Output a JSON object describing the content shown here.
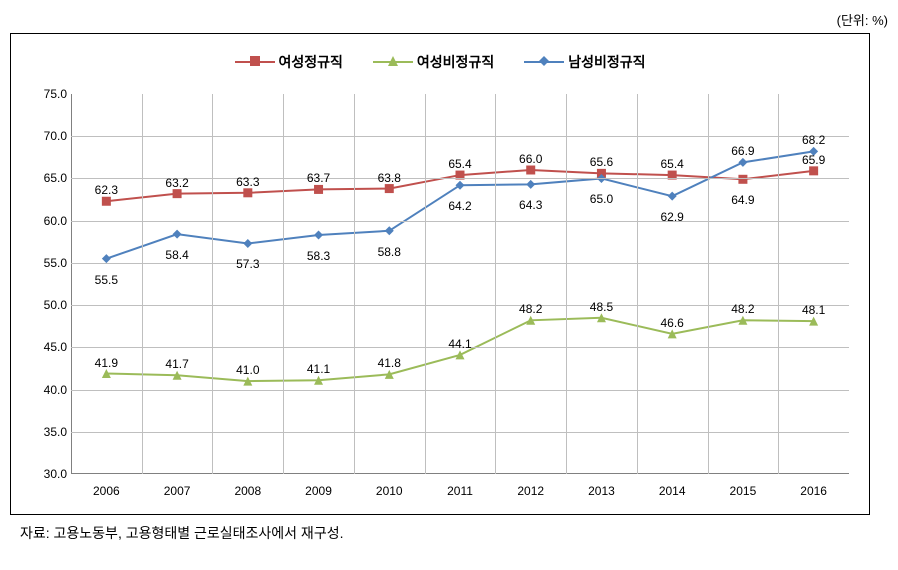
{
  "unit_label": "(단위: %)",
  "chart": {
    "type": "line",
    "years": [
      "2006",
      "2007",
      "2008",
      "2009",
      "2010",
      "2011",
      "2012",
      "2013",
      "2014",
      "2015",
      "2016"
    ],
    "ylim": [
      30.0,
      75.0
    ],
    "ytick_step": 5.0,
    "yticks": [
      "30.0",
      "35.0",
      "40.0",
      "45.0",
      "50.0",
      "55.0",
      "60.0",
      "65.0",
      "70.0",
      "75.0"
    ],
    "background_color": "#ffffff",
    "grid_color": "#bfbfbf",
    "axis_color": "#808080",
    "label_fontsize": 12,
    "legend_fontsize": 14,
    "line_width": 2,
    "marker_size": 9,
    "series": [
      {
        "key": "female_regular",
        "label": "여성정규직",
        "color": "#c0504d",
        "marker": "square",
        "values": [
          62.3,
          63.2,
          63.3,
          63.7,
          63.8,
          65.4,
          66.0,
          65.6,
          65.4,
          64.9,
          65.9
        ],
        "label_position": "above"
      },
      {
        "key": "female_irregular",
        "label": "여성비정규직",
        "color": "#9bbb59",
        "marker": "triangle",
        "values": [
          41.9,
          41.7,
          41.0,
          41.1,
          41.8,
          44.1,
          48.2,
          48.5,
          46.6,
          48.2,
          48.1
        ],
        "label_position": "above"
      },
      {
        "key": "male_irregular",
        "label": "남성비정규직",
        "color": "#4f81bd",
        "marker": "diamond",
        "values": [
          55.5,
          58.4,
          57.3,
          58.3,
          58.8,
          64.2,
          64.3,
          65.0,
          62.9,
          66.9,
          68.2
        ],
        "label_position": "below"
      }
    ]
  },
  "source_note": "자료: 고용노동부, 고용형태별 근로실태조사에서 재구성."
}
